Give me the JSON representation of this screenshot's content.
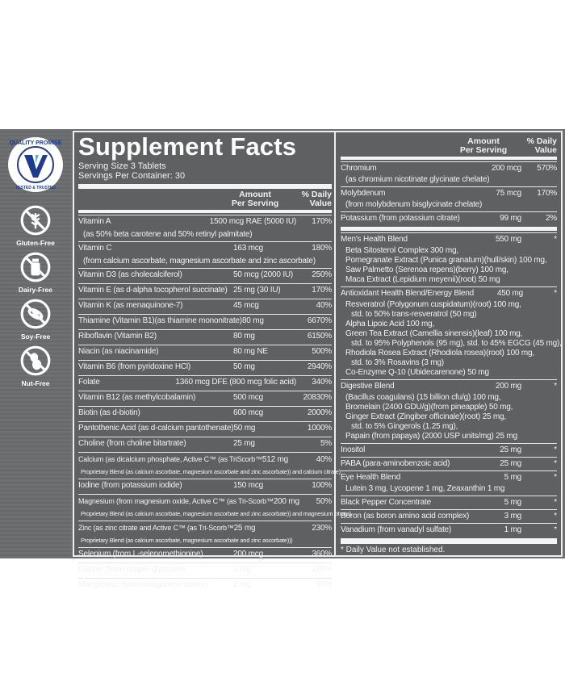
{
  "badges": {
    "quality": {
      "top": "QUALITY PROMISE",
      "bottom": "TESTED & TRUSTED",
      "tm": "TM",
      "color": "#1f3c8c"
    },
    "items": [
      {
        "icon": "wheat-icon",
        "label": "Gluten-Free"
      },
      {
        "icon": "milk-bottle-icon",
        "label": "Dairy-Free"
      },
      {
        "icon": "soybean-icon",
        "label": "Soy-Free"
      },
      {
        "icon": "peanut-icon",
        "label": "Nut-Free"
      }
    ]
  },
  "facts": {
    "title": "Supplement Facts",
    "serving_size": "Serving Size 3 Tablets",
    "servings_per_container": "Servings Per Container: 30",
    "header": {
      "amount": [
        "Amount",
        "Per Serving"
      ],
      "dv": [
        "% Daily",
        "Value"
      ]
    },
    "left_rows": [
      {
        "name": "Vitamin A",
        "amount": "1500 mcg RAE (5000 IU)",
        "dv": "170%",
        "sub": [
          "(as 50% beta carotene and 50% retinyl palmitate)"
        ]
      },
      {
        "name": "Vitamin C",
        "amount": "163 mcg",
        "dv": "180%",
        "sub": [
          "(from calcium ascorbate, magnesium ascorbate and zinc ascorbate)"
        ]
      },
      {
        "name": "Vitamin D3 (as cholecalciferol)",
        "amount": "50 mcg (2000 IU)",
        "dv": "250%"
      },
      {
        "name": "Vitamin E (as d-alpha tocopherol succinate)",
        "amount": "25 mg (30 IU)",
        "dv": "170%"
      },
      {
        "name": "Vitamin K (as menaquinone-7)",
        "amount": "45 mcg",
        "dv": "40%"
      },
      {
        "name": "Thiamine (Vitamin B1)(as thiamine mononitrate)",
        "amount": "80 mg",
        "dv": "6670%"
      },
      {
        "name": "Riboflavin (Vitamin B2)",
        "amount": "80 mg",
        "dv": "6150%"
      },
      {
        "name": "Niacin (as niacinamide)",
        "amount": "80 mg NE",
        "dv": "500%"
      },
      {
        "name": "Vitamin B6 (from pyridoxine HCl)",
        "amount": "50 mg",
        "dv": "2940%"
      },
      {
        "name": "Folate",
        "amount": "1360 mcg DFE (800 mcg folic acid)",
        "dv": "340%"
      },
      {
        "name": "Vitamin B12 (as methylcobalamin)",
        "amount": "500 mcg",
        "dv": "20830%"
      },
      {
        "name": "Biotin (as d-biotin)",
        "amount": "600 mcg",
        "dv": "2000%"
      },
      {
        "name": "Pantothenic Acid (as d-calcium pantothenate)",
        "amount": "50 mg",
        "dv": "1000%"
      },
      {
        "name": "Choline (from choline bitartrate)",
        "amount": "25 mg",
        "dv": "5%"
      },
      {
        "name": "Calcium (as dicalcium phosphate, Active C™ (as TriScorb™",
        "amount": "512 mg",
        "dv": "40%",
        "sub": [
          "Proprietary Blend (as calcium ascorbate, magnesium ascorbate and zinc ascorbate)) and calcium citrate)"
        ],
        "small": true
      },
      {
        "name": "Iodine (from potassium iodide)",
        "amount": "150 mcg",
        "dv": "100%"
      },
      {
        "name": "Magnesium (from magnesium oxide, Active C™ (as Tri-Scorb™",
        "amount": "200 mg",
        "dv": "50%",
        "sub": [
          "Proprietary Blend (as calcium ascorbate, magnesium ascorbate and zinc ascorbate)) and magnesium citrate)"
        ],
        "small": true
      },
      {
        "name": "Zinc (as zinc citrate and Active C™ (as Tri-Scorb™",
        "amount": "25 mg",
        "dv": "230%",
        "sub": [
          "Proprietary Blend (as calcium ascorbate, magnesium ascorbate and zinc ascorbate)))"
        ],
        "small": true
      },
      {
        "name": "Selenium (from L-selenomethionine)",
        "amount": "200 mcg",
        "dv": "360%"
      },
      {
        "name": "Copper (from copper glycinate)",
        "amount": "2 mg",
        "dv": "220%"
      },
      {
        "name": "Manganese (from manganese citrate)",
        "amount": "2 mg",
        "dv": "90%"
      }
    ],
    "right_rows_a": [
      {
        "name": "Chromium",
        "amount": "200 mcg",
        "dv": "570%",
        "sub": [
          "(as chromium nicotinate glycinate chelate)"
        ]
      },
      {
        "name": "Molybdenum",
        "amount": "75 mcg",
        "dv": "170%",
        "sub": [
          "(from molybdenum bisglycinate chelate)"
        ]
      },
      {
        "name": "Potassium (from potassium citrate)",
        "amount": "99 mg",
        "dv": "2%"
      }
    ],
    "right_rows_b": [
      {
        "name": "Men's Health Blend",
        "amount": "550 mg",
        "dv": "*",
        "sub": [
          "Beta Sitosterol Complex 300 mg,",
          "Pomegranate Extract (Punica granatum)(hull/skin) 100 mg,",
          "Saw Palmetto (Serenoa repens)(berry) 100 mg,",
          "Maca Extract (Lepidium meyenii)(root) 50 mg"
        ]
      },
      {
        "name": "Antioxidant Health Blend/Energy Blend",
        "amount": "450 mg",
        "dv": "*",
        "sub": [
          "Resveratrol (Polygonum cuspidatum)(root) 100 mg,",
          "~std. to 50% trans-resveratrol (50 mg)",
          "Alpha Lipoic Acid 100 mg,",
          "Green Tea Extract (Camellia sinensis)(leaf) 100 mg,",
          "~std. to 95% Polyphenols (95 mg), std. to 45% EGCG (45 mg),",
          "Rhodiola Rosea Extract (Rhodiola rosea)(root) 100 mg,",
          "~std. to 3% Rosavins (3 mg)",
          "Co-Enzyme Q-10 (Ubidecarenone) 50 mg"
        ]
      },
      {
        "name": "Digestive Blend",
        "amount": "200 mg",
        "dv": "*",
        "sub": [
          "(Bacillus coagulans) (15 billion cfu/g) 100 mg,",
          "Bromelain (2400 GDU/g)(from pineapple) 50 mg,",
          "Ginger Extract (Zingiber officinale)(root) 25 mg,",
          "~std. to 5% Gingerols (1.25 mg),",
          "Papain (from papaya) (2000 USP units/mg) 25 mg"
        ]
      },
      {
        "name": "Inositol",
        "amount": "25 mg",
        "dv": "*"
      },
      {
        "name": "PABA (para-aminobenzoic acid)",
        "amount": "25 mg",
        "dv": "*"
      },
      {
        "name": "Eye Health Blend",
        "amount": "5 mg",
        "dv": "*",
        "sub": [
          "Lutein 3 mg, Lycopene 1 mg, Zeaxanthin 1 mg"
        ]
      },
      {
        "name": "Black Pepper Concentrate",
        "amount": "5 mg",
        "dv": "*"
      },
      {
        "name": "Boron (as boron amino acid complex)",
        "amount": "3 mg",
        "dv": "*"
      },
      {
        "name": "Vanadium (from vanadyl sulfate)",
        "amount": "1 mg",
        "dv": "*"
      }
    ],
    "footnote": "* Daily Value not established."
  }
}
